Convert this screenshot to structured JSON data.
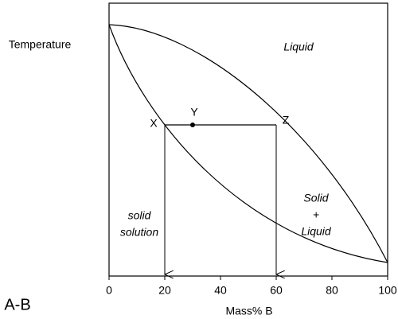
{
  "y_axis_label": "Temperature",
  "x_axis": {
    "label": "Mass% B",
    "ticks": [
      0,
      20,
      40,
      60,
      80,
      100
    ]
  },
  "system": "A-B",
  "regions": {
    "liquid": "Liquid",
    "two_phase": [
      "Solid",
      "+",
      "Liquid"
    ],
    "solid": [
      "solid",
      "solution"
    ]
  },
  "points": {
    "x": "X",
    "y": "Y",
    "z": "Z"
  }
}
